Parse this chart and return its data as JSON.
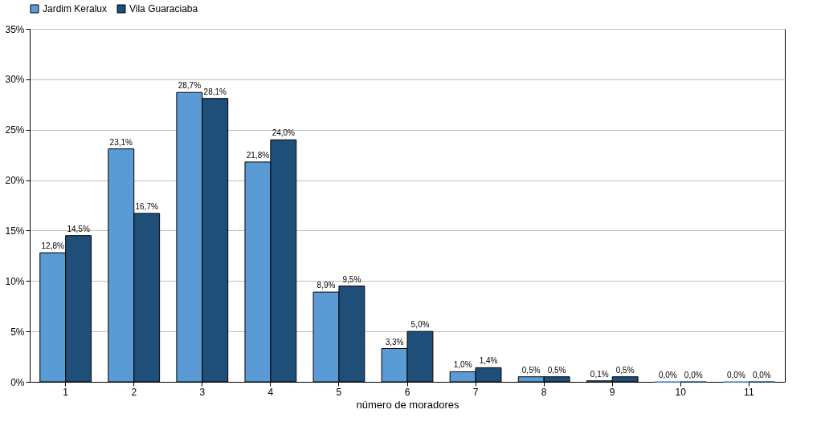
{
  "chart_data": {
    "type": "bar",
    "xlabel": "número de moradores",
    "categories": [
      "1",
      "2",
      "3",
      "4",
      "5",
      "6",
      "7",
      "8",
      "9",
      "10",
      "11"
    ],
    "series": [
      {
        "name": "Jardim Keralux",
        "color": "#5b9bd5",
        "values": [
          12.8,
          23.1,
          28.7,
          21.8,
          8.9,
          3.3,
          1.0,
          0.5,
          0.1,
          0.0,
          0.0
        ],
        "value_labels": [
          "12,8%",
          "23,1%",
          "28,7%",
          "21,8%",
          "8,9%",
          "3,3%",
          "1,0%",
          "0,5%",
          "0,1%",
          "0,0%",
          "0,0%"
        ]
      },
      {
        "name": "Vila Guaraciaba",
        "color": "#1f4e79",
        "values": [
          14.5,
          16.7,
          28.1,
          24.0,
          9.5,
          5.0,
          1.4,
          0.5,
          0.5,
          0.0,
          0.0
        ],
        "value_labels": [
          "14,5%",
          "16,7%",
          "28,1%",
          "24,0%",
          "9,5%",
          "5,0%",
          "1,4%",
          "0,5%",
          "0,5%",
          "0,0%",
          "0,0%"
        ]
      }
    ],
    "ylim": [
      0,
      35
    ],
    "yticks": [
      {
        "value": 0,
        "label": "0%"
      },
      {
        "value": 5,
        "label": "5%"
      },
      {
        "value": 10,
        "label": "10%"
      },
      {
        "value": 15,
        "label": "15%"
      },
      {
        "value": 20,
        "label": "20%"
      },
      {
        "value": 25,
        "label": "25%"
      },
      {
        "value": 30,
        "label": "30%"
      },
      {
        "value": 35,
        "label": "35%"
      }
    ],
    "grid": "y",
    "legend": "top"
  }
}
